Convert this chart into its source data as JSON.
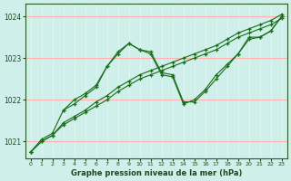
{
  "xlabel": "Graphe pression niveau de la mer (hPa)",
  "xlim": [
    -0.5,
    23.5
  ],
  "ylim": [
    1020.6,
    1024.3
  ],
  "yticks": [
    1021,
    1022,
    1023,
    1024
  ],
  "xticks": [
    0,
    1,
    2,
    3,
    4,
    5,
    6,
    7,
    8,
    9,
    10,
    11,
    12,
    13,
    14,
    15,
    16,
    17,
    18,
    19,
    20,
    21,
    22,
    23
  ],
  "bg_color": "#cff0ea",
  "grid_color_h": "#ffb0b0",
  "grid_color_v": "#e0f8f4",
  "line_color": "#1a6b1a",
  "series": [
    {
      "x": [
        0,
        1,
        2,
        3,
        4,
        5,
        6,
        7,
        8,
        9,
        10,
        11,
        12,
        13,
        14,
        15,
        16,
        17,
        18,
        19,
        20,
        21,
        22,
        23
      ],
      "y": [
        1020.75,
        1021.0,
        1021.15,
        1021.4,
        1021.55,
        1021.7,
        1021.85,
        1022.0,
        1022.2,
        1022.35,
        1022.5,
        1022.6,
        1022.7,
        1022.8,
        1022.9,
        1023.0,
        1023.1,
        1023.2,
        1023.35,
        1023.5,
        1023.6,
        1023.7,
        1023.8,
        1023.95
      ]
    },
    {
      "x": [
        0,
        1,
        2,
        3,
        4,
        5,
        6,
        7,
        8,
        9,
        10,
        11,
        12,
        13,
        14,
        15,
        16,
        17,
        18,
        19,
        20,
        21,
        22,
        23
      ],
      "y": [
        1020.75,
        1021.0,
        1021.15,
        1021.45,
        1021.6,
        1021.75,
        1021.95,
        1022.1,
        1022.3,
        1022.45,
        1022.6,
        1022.7,
        1022.8,
        1022.9,
        1023.0,
        1023.1,
        1023.2,
        1023.3,
        1023.45,
        1023.6,
        1023.7,
        1023.8,
        1023.9,
        1024.05
      ]
    },
    {
      "x": [
        0,
        1,
        2,
        3,
        4,
        5,
        6,
        7,
        8,
        9,
        10,
        11,
        12,
        13,
        14,
        15,
        16,
        17,
        18,
        19,
        20,
        21,
        22,
        23
      ],
      "y": [
        1020.75,
        1021.05,
        1021.2,
        1021.75,
        1022.0,
        1022.15,
        1022.35,
        1022.8,
        1023.1,
        1023.35,
        1023.2,
        1023.15,
        1022.65,
        1022.6,
        1021.95,
        1021.95,
        1022.2,
        1022.5,
        1022.8,
        1023.1,
        1023.45,
        1023.5,
        1023.65,
        1024.0
      ]
    },
    {
      "x": [
        3,
        4,
        5,
        6,
        7,
        8,
        9,
        10,
        11,
        12,
        13,
        14,
        15,
        16,
        17,
        18,
        19,
        20,
        21,
        22,
        23
      ],
      "y": [
        1021.75,
        1021.9,
        1022.1,
        1022.3,
        1022.8,
        1023.15,
        1023.35,
        1023.2,
        1023.1,
        1022.6,
        1022.55,
        1021.9,
        1022.0,
        1022.25,
        1022.6,
        1022.85,
        1023.1,
        1023.5,
        1023.5,
        1023.65,
        1024.0
      ]
    }
  ]
}
